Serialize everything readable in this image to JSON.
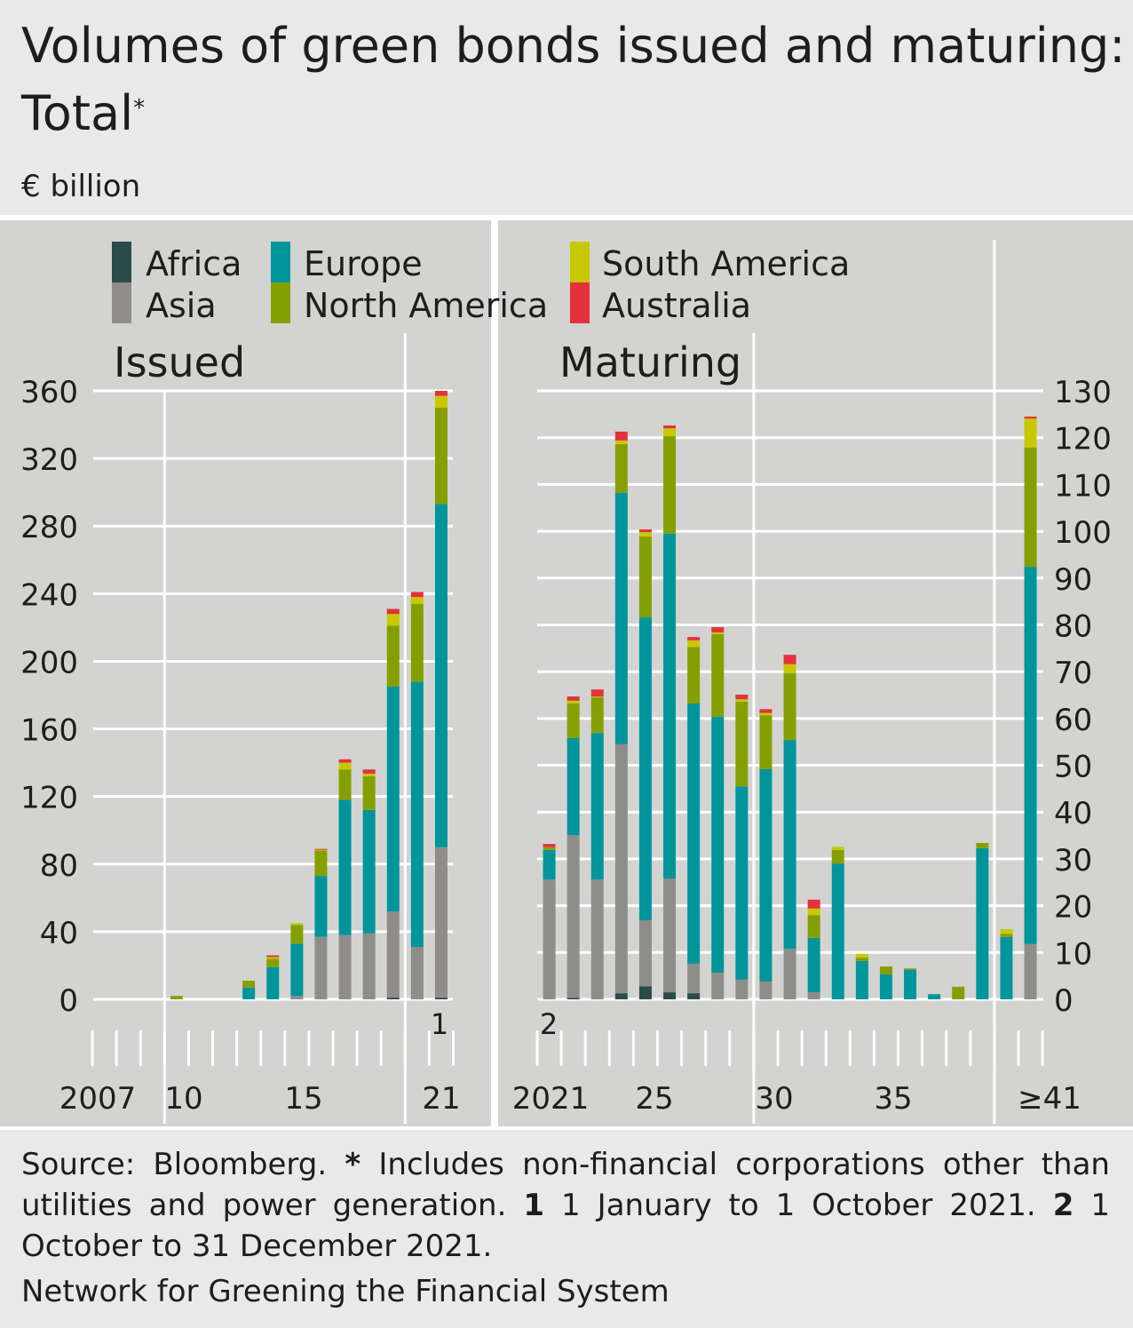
{
  "title": "Volumes of green bonds issued and maturing: Total",
  "title_marker": "*",
  "unit": "€ billion",
  "footer": {
    "source": "Source: Bloomberg.",
    "note_star": "*",
    "note_star_text": "Includes non-financial corporations other than utilities and power generation.",
    "note1_marker": "1",
    "note1_text": "1 January to 1 October 2021.",
    "note2_marker": "2",
    "note2_text": "1 October to 31 December 2021.",
    "organisation": "Network for Greening the Financial System"
  },
  "colors": {
    "Africa": "#2b4b49",
    "Asia": "#8f8d8a",
    "Europe": "#00959b",
    "North America": "#84a000",
    "South America": "#c8c800",
    "Australia": "#e3323b"
  },
  "chart_data": [
    {
      "type": "bar",
      "stacked": true,
      "title": "Issued",
      "ylabel": "€ billion",
      "ylim": [
        0,
        360
      ],
      "yticks": [
        "0",
        "40",
        "80",
        "120",
        "160",
        "200",
        "240",
        "280",
        "320",
        "360"
      ],
      "xtick_labels": [
        "2007",
        "10",
        "15",
        "21"
      ],
      "footnote_marker": "1",
      "categories": [
        "2007",
        "2008",
        "2009",
        "2010",
        "2011",
        "2012",
        "2013",
        "2014",
        "2015",
        "2016",
        "2017",
        "2018",
        "2019",
        "2020",
        "2021"
      ],
      "series": [
        {
          "name": "Africa",
          "values": [
            0,
            0,
            0,
            0,
            0,
            0,
            0,
            0,
            0,
            0,
            0,
            0,
            1,
            0,
            1
          ]
        },
        {
          "name": "Asia",
          "values": [
            0,
            0,
            0,
            0,
            0,
            0,
            0,
            0,
            2,
            37,
            38,
            39,
            51,
            31,
            89
          ]
        },
        {
          "name": "Europe",
          "values": [
            0,
            0,
            0,
            0,
            0,
            0,
            7,
            19,
            31,
            36,
            80,
            73,
            133,
            157,
            203
          ]
        },
        {
          "name": "North America",
          "values": [
            0,
            0,
            0,
            2,
            0,
            0,
            4,
            5,
            11,
            15,
            18,
            20,
            36,
            46,
            57
          ]
        },
        {
          "name": "South America",
          "values": [
            0,
            0,
            0,
            0,
            0,
            0,
            0,
            1,
            1,
            0.5,
            4,
            1.5,
            7,
            4,
            7
          ]
        },
        {
          "name": "Australia",
          "values": [
            0,
            0,
            0,
            0,
            0,
            0,
            0,
            1,
            0,
            0.5,
            2,
            2.5,
            3,
            3,
            3
          ]
        }
      ]
    },
    {
      "type": "bar",
      "stacked": true,
      "title": "Maturing",
      "ylabel": "€ billion",
      "ylim": [
        0,
        130
      ],
      "yticks": [
        "0",
        "10",
        "20",
        "30",
        "40",
        "50",
        "60",
        "70",
        "80",
        "90",
        "100",
        "110",
        "120",
        "130"
      ],
      "xtick_labels": [
        "2021",
        "25",
        "30",
        "35",
        "≥41"
      ],
      "footnote_marker": "2",
      "categories": [
        "2021",
        "2022",
        "2023",
        "2024",
        "2025",
        "2026",
        "2027",
        "2028",
        "2029",
        "2030",
        "2031",
        "2032",
        "2033",
        "2034",
        "2035",
        "2036",
        "2037",
        "2038",
        "2039",
        "2040",
        "≥41"
      ],
      "series": [
        {
          "name": "Africa",
          "values": [
            0,
            0.3,
            0,
            1.3,
            2.8,
            1.5,
            1.3,
            0,
            0,
            0,
            0,
            0,
            0,
            0,
            0,
            0,
            0,
            0,
            0,
            0,
            0
          ]
        },
        {
          "name": "Asia",
          "values": [
            25.6,
            34.8,
            25.6,
            53.2,
            14.1,
            24.3,
            6.3,
            5.7,
            4.2,
            3.8,
            10.8,
            1.5,
            0,
            0,
            0,
            0,
            0,
            0,
            0,
            0,
            11.8
          ]
        },
        {
          "name": "Europe",
          "values": [
            6.3,
            20.7,
            31.3,
            53.7,
            64.7,
            73.7,
            55.6,
            54.7,
            41.3,
            45.4,
            44.6,
            11.6,
            29,
            8.2,
            5.3,
            6.3,
            1.1,
            0,
            32.3,
            13.3,
            80.6
          ]
        },
        {
          "name": "North America",
          "values": [
            0.6,
            7.4,
            7.6,
            10.4,
            17.3,
            20.8,
            12.1,
            17.6,
            18.1,
            11.5,
            14.3,
            4.9,
            2.9,
            0.7,
            1.7,
            0.3,
            0,
            2.7,
            1.1,
            0.7,
            25.5
          ]
        },
        {
          "name": "South America",
          "values": [
            0,
            0.6,
            0.2,
            0.8,
            0.9,
            1.7,
            1.4,
            0.4,
            0.5,
            0.5,
            1.9,
            1.4,
            0.7,
            0.8,
            0,
            0,
            0,
            0,
            0,
            1.0,
            6.2
          ]
        },
        {
          "name": "Australia",
          "values": [
            0.7,
            0.9,
            1.5,
            1.9,
            0.6,
            0.6,
            0.7,
            1.1,
            1.0,
            0.8,
            2.0,
            1.9,
            0,
            0,
            0,
            0,
            0,
            0,
            0,
            0,
            0.4
          ]
        }
      ]
    }
  ]
}
